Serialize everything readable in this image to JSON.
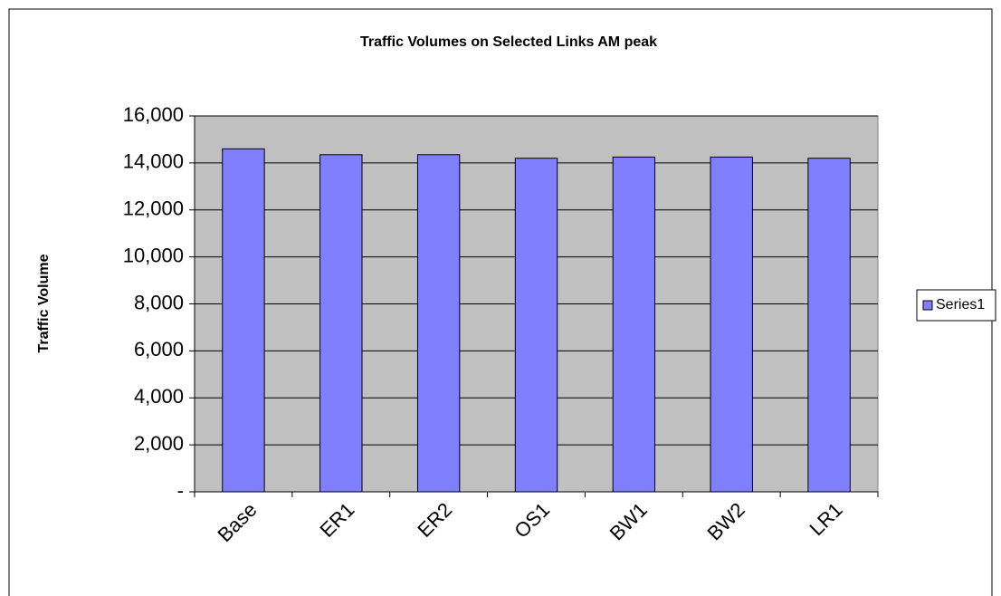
{
  "chart_data": {
    "type": "bar",
    "title": "Traffic Volumes on Selected Links AM peak",
    "y_label": "Traffic Volume",
    "categories": [
      "Base",
      "ER1",
      "ER2",
      "OS1",
      "BW1",
      "BW2",
      "LR1"
    ],
    "series": [
      {
        "name": "Series1",
        "color": "#8080ff",
        "values": [
          14600,
          14350,
          14350,
          14200,
          14250,
          14250,
          14200
        ]
      }
    ],
    "ylim": [
      0,
      16000
    ],
    "yticks": [
      {
        "value": 0,
        "label": "-"
      },
      {
        "value": 2000,
        "label": "2,000"
      },
      {
        "value": 4000,
        "label": "4,000"
      },
      {
        "value": 6000,
        "label": "6,000"
      },
      {
        "value": 8000,
        "label": "8,000"
      },
      {
        "value": 10000,
        "label": "10,000"
      },
      {
        "value": 12000,
        "label": "12,000"
      },
      {
        "value": 14000,
        "label": "14,000"
      },
      {
        "value": 16000,
        "label": "16,000"
      }
    ],
    "grid": true,
    "legend": "right",
    "plot_background": "#c0c0c0"
  }
}
